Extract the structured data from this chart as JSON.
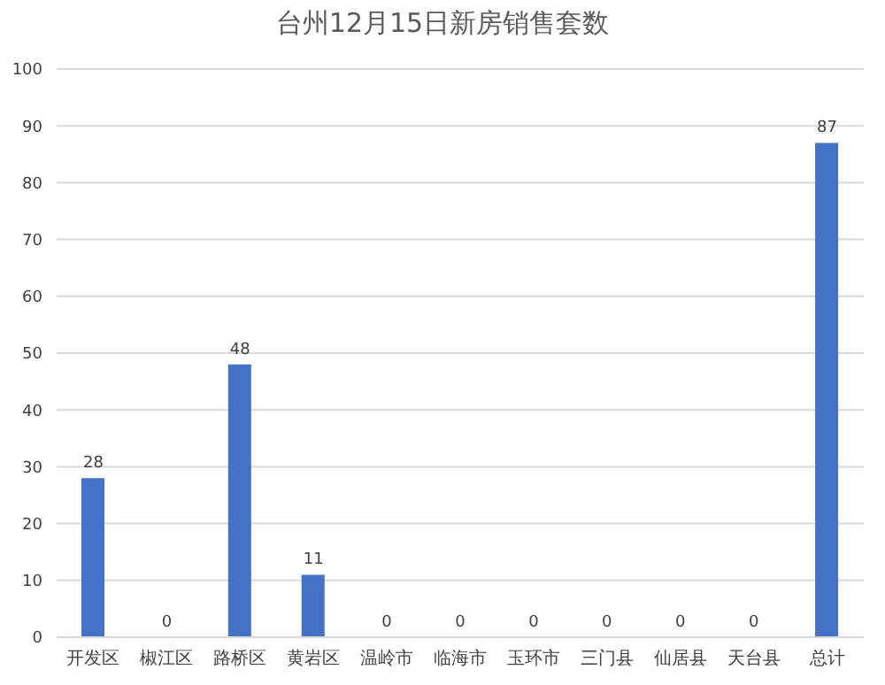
{
  "chart_data": {
    "type": "bar",
    "title": "台州12月15日新房销售套数",
    "categories": [
      "开发区",
      "椒江区",
      "路桥区",
      "黄岩区",
      "温岭市",
      "临海市",
      "玉环市",
      "三门县",
      "仙居县",
      "天台县",
      "总计"
    ],
    "values": [
      28,
      0,
      48,
      11,
      0,
      0,
      0,
      0,
      0,
      0,
      87
    ],
    "color": "#4472c4",
    "ylim": [
      0,
      100
    ],
    "yticks": [
      0,
      10,
      20,
      30,
      40,
      50,
      60,
      70,
      80,
      90,
      100
    ],
    "grid": "y",
    "data_labels": true
  }
}
